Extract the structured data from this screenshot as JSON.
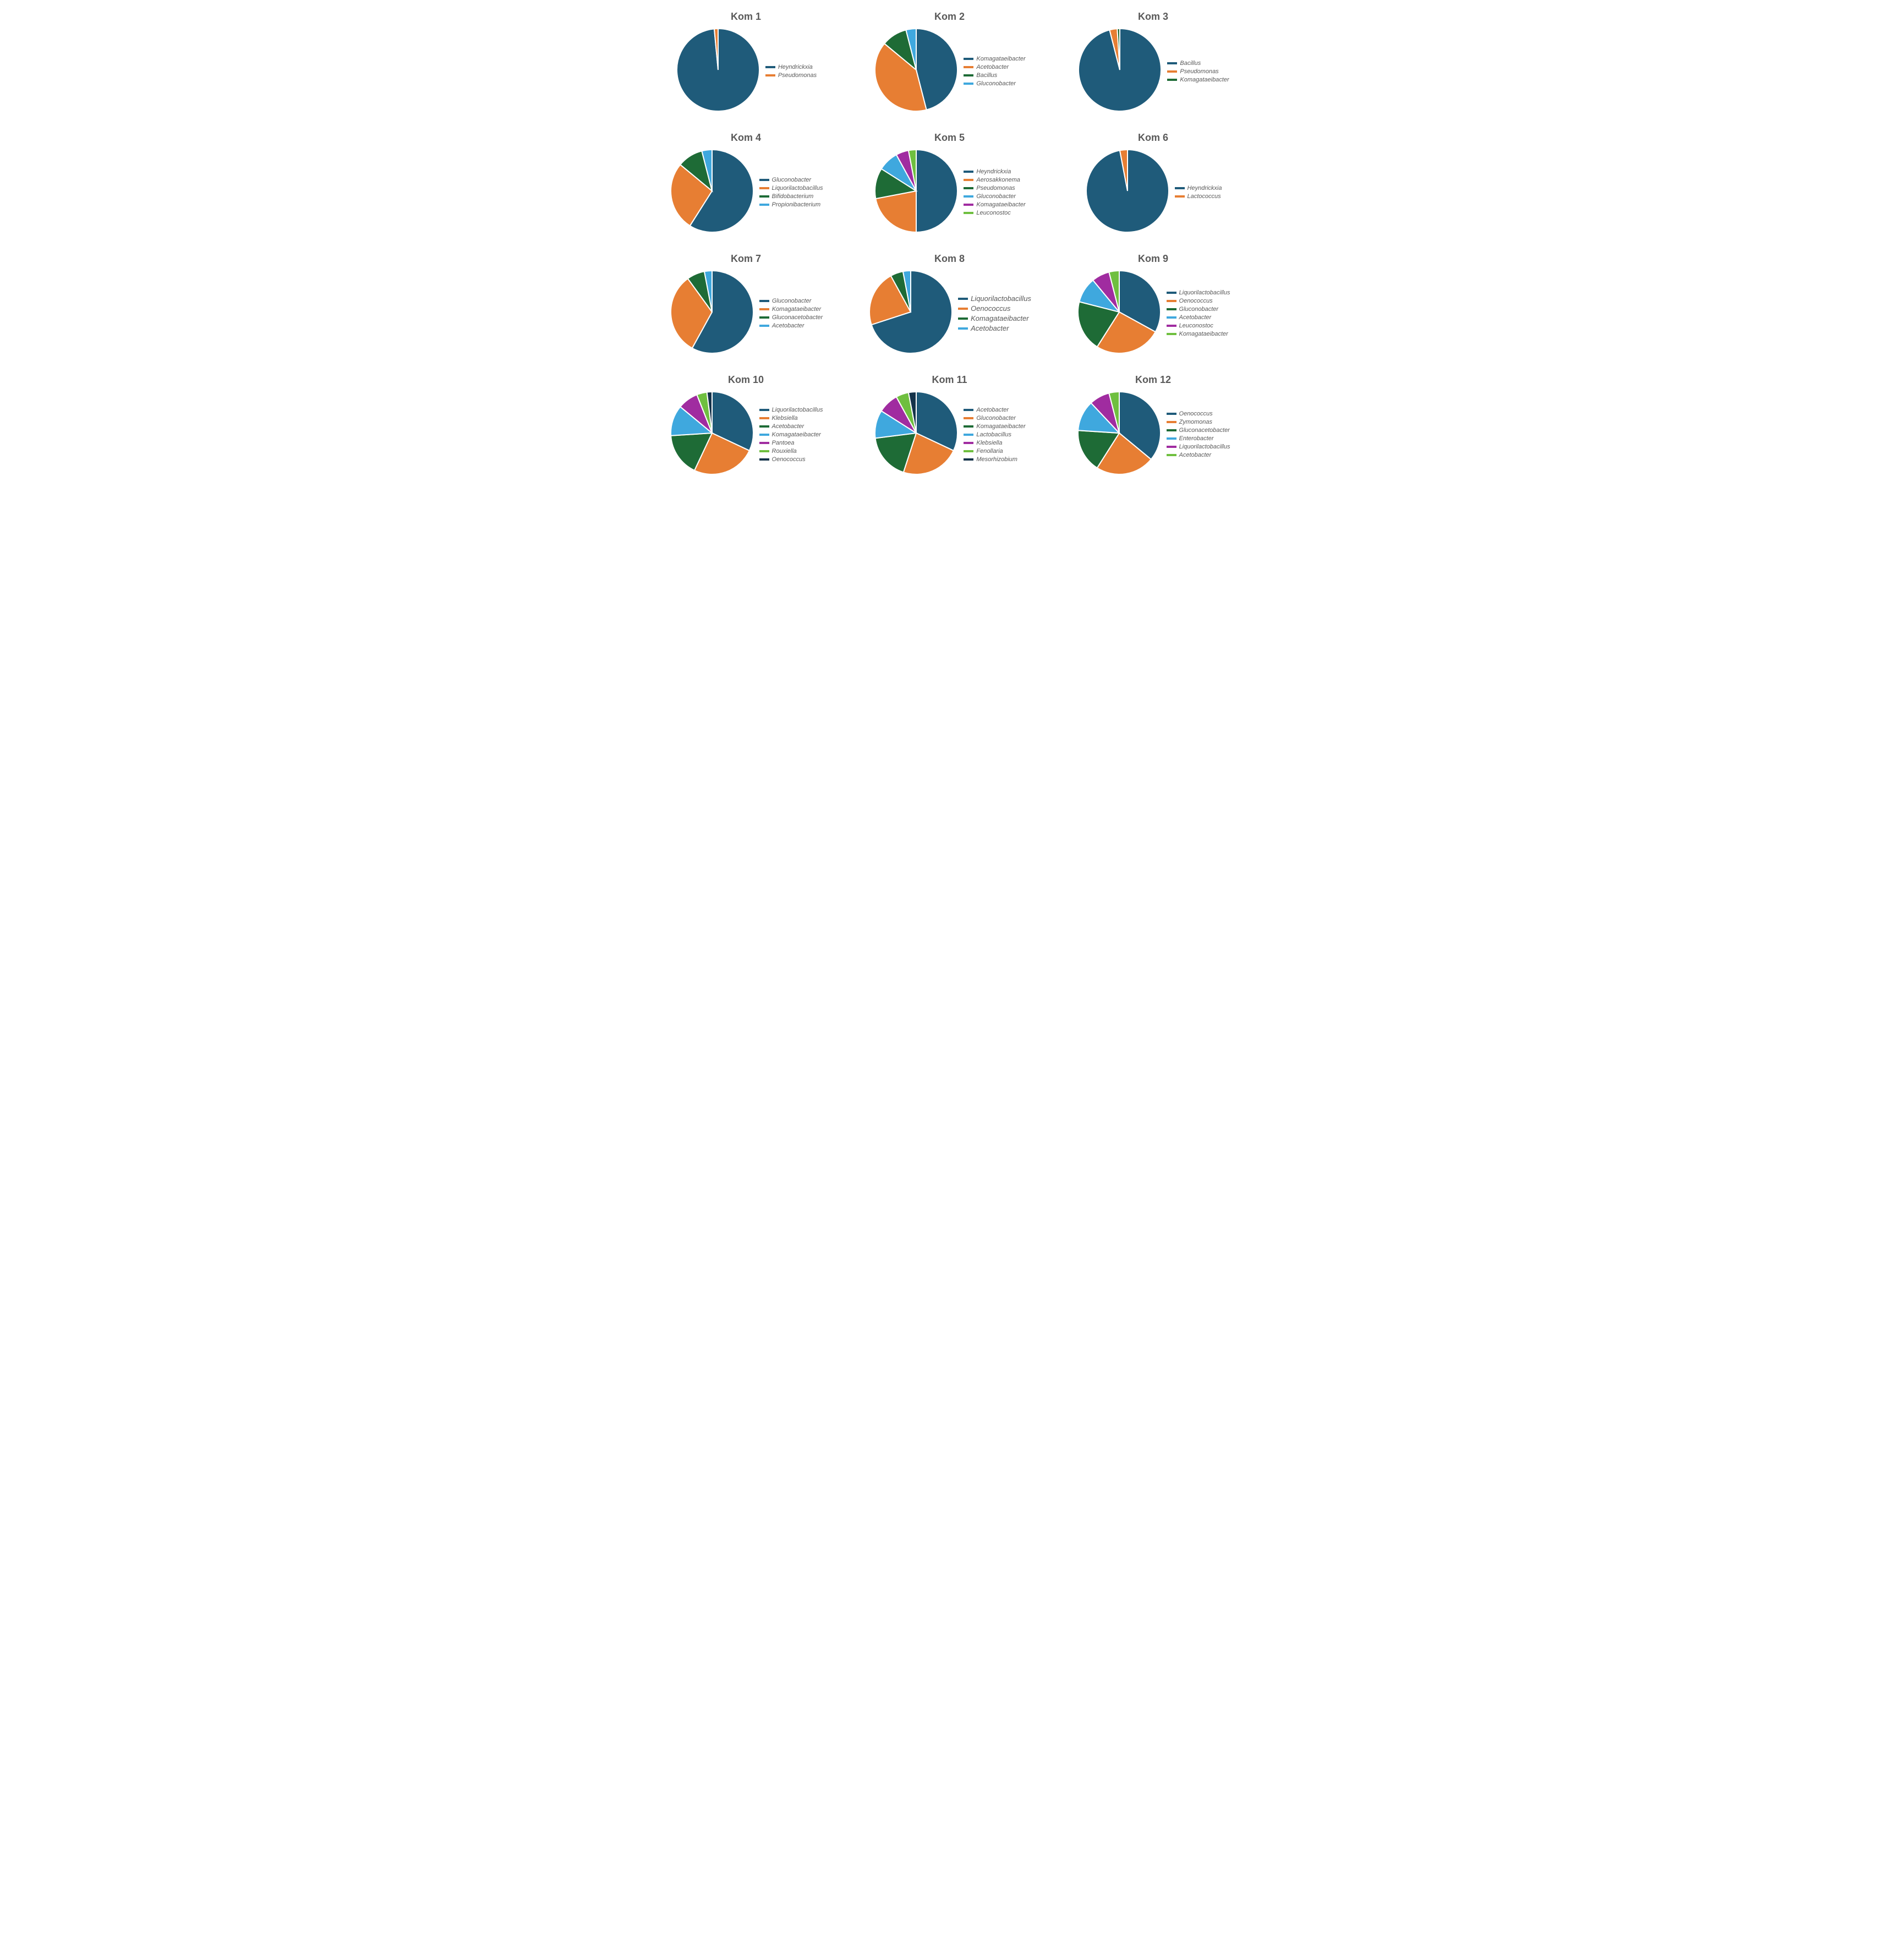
{
  "layout": {
    "columns": 3,
    "background_color": "#ffffff",
    "title_color": "#595959",
    "title_fontsize": 18,
    "title_fontweight": 700,
    "legend_color": "#595959",
    "legend_fontsize": 11,
    "legend_fontstyle": "italic",
    "pie_radius": 75,
    "pie_stroke": "#ffffff",
    "pie_stroke_width": 2
  },
  "palette": {
    "c1": "#1f5b7a",
    "c2": "#e77e33",
    "c3": "#1e6b36",
    "c4": "#3fa8de",
    "c5": "#a02ca0",
    "c6": "#6fbf3f",
    "c7": "#14334a"
  },
  "charts": [
    {
      "title": "Kom 1",
      "type": "pie",
      "slices": [
        {
          "label": "Heyndrickxia",
          "value": 98.5,
          "color": "#1f5b7a"
        },
        {
          "label": "Pseudomonas",
          "value": 1.5,
          "color": "#e77e33"
        }
      ]
    },
    {
      "title": "Kom 2",
      "type": "pie",
      "slices": [
        {
          "label": "Komagataeibacter",
          "value": 46,
          "color": "#1f5b7a"
        },
        {
          "label": "Acetobacter",
          "value": 40,
          "color": "#e77e33"
        },
        {
          "label": "Bacillus",
          "value": 10,
          "color": "#1e6b36"
        },
        {
          "label": "Gluconobacter",
          "value": 4,
          "color": "#3fa8de"
        }
      ]
    },
    {
      "title": "Kom 3",
      "type": "pie",
      "slices": [
        {
          "label": "Bacillus",
          "value": 96,
          "color": "#1f5b7a"
        },
        {
          "label": "Pseudomonas",
          "value": 3,
          "color": "#e77e33"
        },
        {
          "label": "Komagataeibacter",
          "value": 1,
          "color": "#1e6b36"
        }
      ]
    },
    {
      "title": "Kom 4",
      "type": "pie",
      "slices": [
        {
          "label": "Gluconobacter",
          "value": 59,
          "color": "#1f5b7a"
        },
        {
          "label": "Liquorilactobacillus",
          "value": 27,
          "color": "#e77e33"
        },
        {
          "label": "Bifidobacterium",
          "value": 10,
          "color": "#1e6b36"
        },
        {
          "label": "Propionibacterium",
          "value": 4,
          "color": "#3fa8de"
        }
      ]
    },
    {
      "title": "Kom 5",
      "type": "pie",
      "slices": [
        {
          "label": "Heyndrickxia",
          "value": 50,
          "color": "#1f5b7a"
        },
        {
          "label": "Aerosakkonema",
          "value": 22,
          "color": "#e77e33"
        },
        {
          "label": "Pseudomonas",
          "value": 12,
          "color": "#1e6b36"
        },
        {
          "label": "Gluconobacter",
          "value": 8,
          "color": "#3fa8de"
        },
        {
          "label": "Komagataeibacter",
          "value": 5,
          "color": "#a02ca0"
        },
        {
          "label": "Leuconostoc",
          "value": 3,
          "color": "#6fbf3f"
        }
      ]
    },
    {
      "title": "Kom 6",
      "type": "pie",
      "slices": [
        {
          "label": "Heyndrickxia",
          "value": 97,
          "color": "#1f5b7a"
        },
        {
          "label": "Lactococcus",
          "value": 3,
          "color": "#e77e33"
        }
      ]
    },
    {
      "title": "Kom 7",
      "type": "pie",
      "slices": [
        {
          "label": "Gluconobacter",
          "value": 58,
          "color": "#1f5b7a"
        },
        {
          "label": "Komagataeibacter",
          "value": 32,
          "color": "#e77e33"
        },
        {
          "label": "Gluconacetobacter",
          "value": 7,
          "color": "#1e6b36"
        },
        {
          "label": "Acetobacter",
          "value": 3,
          "color": "#3fa8de"
        }
      ]
    },
    {
      "title": "Kom 8",
      "type": "pie",
      "legend_fontsize": 13,
      "slices": [
        {
          "label": "Liquorilactobacillus",
          "value": 70,
          "color": "#1f5b7a"
        },
        {
          "label": "Oenococcus",
          "value": 22,
          "color": "#e77e33"
        },
        {
          "label": "Komagataeibacter",
          "value": 5,
          "color": "#1e6b36"
        },
        {
          "label": "Acetobacter",
          "value": 3,
          "color": "#3fa8de"
        }
      ]
    },
    {
      "title": "Kom 9",
      "type": "pie",
      "slices": [
        {
          "label": "Liquorilactobacillus",
          "value": 33,
          "color": "#1f5b7a"
        },
        {
          "label": "Oenococcus",
          "value": 26,
          "color": "#e77e33"
        },
        {
          "label": "Gluconobacter",
          "value": 20,
          "color": "#1e6b36"
        },
        {
          "label": "Acetobacter",
          "value": 10,
          "color": "#3fa8de"
        },
        {
          "label": "Leuconostoc",
          "value": 7,
          "color": "#a02ca0"
        },
        {
          "label": "Komagataeibacter",
          "value": 4,
          "color": "#6fbf3f"
        }
      ]
    },
    {
      "title": "Kom 10",
      "type": "pie",
      "slices": [
        {
          "label": "Liquorilactobacillus",
          "value": 32,
          "color": "#1f5b7a"
        },
        {
          "label": "Klebsiella",
          "value": 25,
          "color": "#e77e33"
        },
        {
          "label": "Acetobacter",
          "value": 17,
          "color": "#1e6b36"
        },
        {
          "label": "Komagataeibacter",
          "value": 12,
          "color": "#3fa8de"
        },
        {
          "label": "Pantoea",
          "value": 8,
          "color": "#a02ca0"
        },
        {
          "label": "Rouxiella",
          "value": 4,
          "color": "#6fbf3f"
        },
        {
          "label": "Oenococcus",
          "value": 2,
          "color": "#14334a"
        }
      ]
    },
    {
      "title": "Kom 11",
      "type": "pie",
      "slices": [
        {
          "label": "Acetobacter",
          "value": 32,
          "color": "#1f5b7a"
        },
        {
          "label": "Gluconobacter",
          "value": 23,
          "color": "#e77e33"
        },
        {
          "label": "Komagataeibacter",
          "value": 18,
          "color": "#1e6b36"
        },
        {
          "label": "Lactobacillus",
          "value": 11,
          "color": "#3fa8de"
        },
        {
          "label": "Klebsiella",
          "value": 8,
          "color": "#a02ca0"
        },
        {
          "label": "Fenollaria",
          "value": 5,
          "color": "#6fbf3f"
        },
        {
          "label": "Mesorhizobium",
          "value": 3,
          "color": "#14334a"
        }
      ]
    },
    {
      "title": "Kom 12",
      "type": "pie",
      "slices": [
        {
          "label": "Oenococcus",
          "value": 36,
          "color": "#1f5b7a"
        },
        {
          "label": "Zymomonas",
          "value": 23,
          "color": "#e77e33"
        },
        {
          "label": "Gluconacetobacter",
          "value": 17,
          "color": "#1e6b36"
        },
        {
          "label": "Enterobacter",
          "value": 12,
          "color": "#3fa8de"
        },
        {
          "label": "Liquorilactobacillus",
          "value": 8,
          "color": "#a02ca0"
        },
        {
          "label": "Acetobacter",
          "value": 4,
          "color": "#6fbf3f"
        }
      ]
    }
  ]
}
